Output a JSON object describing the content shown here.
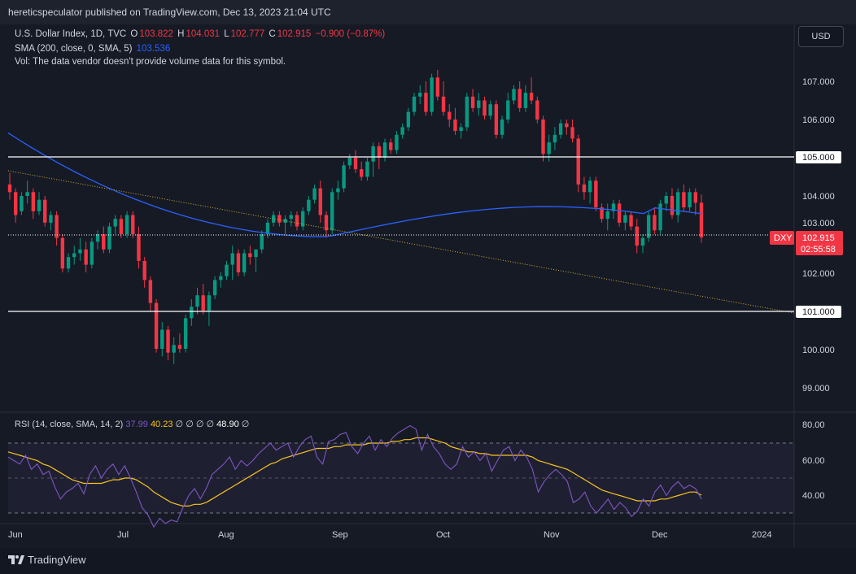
{
  "header": {
    "publisher": "hereticspeculator published on TradingView.com, Dec 13, 2023 21:04 UTC"
  },
  "legend": {
    "symbol": "U.S. Dollar Index, 1D, TVC",
    "o_label": "O",
    "o_value": "103.822",
    "h_label": "H",
    "h_value": "104.031",
    "l_label": "L",
    "l_value": "102.777",
    "c_label": "C",
    "c_value": "102.915",
    "change": "−0.900 (−0.87%)",
    "sma_label": "SMA (200, close, 0, SMA, 5)",
    "sma_value": "103.536",
    "vol_note": "Vol: The data vendor doesn't provide volume data for this symbol."
  },
  "currency_button": "USD",
  "price_axis": {
    "ticks": [
      "107.000",
      "106.000",
      "105.000",
      "104.000",
      "103.000",
      "102.000",
      "101.000",
      "100.000",
      "99.000"
    ],
    "hline_labels": [
      "105.000",
      "101.000"
    ],
    "last_symbol": "DXY",
    "last_price": "102.915",
    "countdown": "02:55:58"
  },
  "rsi": {
    "label": "RSI (14, close, SMA, 14, 2)",
    "rsi_value": "37.99",
    "sma_value": "40.23",
    "empty_values": [
      "∅",
      "∅",
      "∅",
      "∅"
    ],
    "extra_value": "48.90",
    "extra_empty": "∅",
    "ticks": [
      "80.00",
      "60.00",
      "40.00"
    ]
  },
  "time_axis": {
    "labels": [
      "Jun",
      "Jul",
      "Aug",
      "Sep",
      "Oct",
      "Nov",
      "Dec",
      "2024"
    ]
  },
  "branding": {
    "logo_text": "TradingView"
  },
  "colors": {
    "up": "#089981",
    "down": "#f23645",
    "sma": "#2962ff",
    "rsi": "#7e57c2",
    "rsi_sma": "#f7c51e",
    "trend": "#c9b03a"
  },
  "chart_data": {
    "type": "candlestick",
    "title": "U.S. Dollar Index, 1D, TVC",
    "ylim": [
      98.5,
      108.6
    ],
    "horizontal_levels": [
      105.0,
      101.0
    ],
    "trendline": {
      "from": {
        "date": "2023-06-01",
        "price": 104.65
      },
      "to": {
        "date": "2024-01-05",
        "price": 100.95
      }
    },
    "sma_200": {
      "start": 105.65,
      "min": 102.93,
      "end": 103.536
    },
    "last_close": 102.915,
    "candles": [
      {
        "o": 104.3,
        "h": 104.6,
        "l": 103.9,
        "c": 104.1
      },
      {
        "o": 104.1,
        "h": 104.2,
        "l": 103.3,
        "c": 103.5
      },
      {
        "o": 103.6,
        "h": 104.1,
        "l": 103.5,
        "c": 104.0
      },
      {
        "o": 104.0,
        "h": 104.4,
        "l": 103.8,
        "c": 104.1
      },
      {
        "o": 104.1,
        "h": 104.2,
        "l": 103.4,
        "c": 103.6
      },
      {
        "o": 103.6,
        "h": 104.1,
        "l": 103.5,
        "c": 103.9
      },
      {
        "o": 103.9,
        "h": 104.0,
        "l": 103.2,
        "c": 103.3
      },
      {
        "o": 103.3,
        "h": 103.6,
        "l": 103.1,
        "c": 103.5
      },
      {
        "o": 103.5,
        "h": 103.6,
        "l": 102.7,
        "c": 102.9
      },
      {
        "o": 102.9,
        "h": 103.0,
        "l": 102.0,
        "c": 102.1
      },
      {
        "o": 102.1,
        "h": 102.5,
        "l": 102.0,
        "c": 102.4
      },
      {
        "o": 102.4,
        "h": 102.7,
        "l": 102.2,
        "c": 102.5
      },
      {
        "o": 102.5,
        "h": 102.9,
        "l": 102.3,
        "c": 102.6
      },
      {
        "o": 102.6,
        "h": 102.8,
        "l": 102.0,
        "c": 102.2
      },
      {
        "o": 102.2,
        "h": 102.9,
        "l": 102.1,
        "c": 102.8
      },
      {
        "o": 102.8,
        "h": 103.1,
        "l": 102.6,
        "c": 103.0
      },
      {
        "o": 103.0,
        "h": 103.2,
        "l": 102.5,
        "c": 102.6
      },
      {
        "o": 102.6,
        "h": 103.3,
        "l": 102.5,
        "c": 103.2
      },
      {
        "o": 103.2,
        "h": 103.5,
        "l": 103.0,
        "c": 103.4
      },
      {
        "o": 103.4,
        "h": 103.5,
        "l": 102.9,
        "c": 103.0
      },
      {
        "o": 103.0,
        "h": 103.6,
        "l": 102.9,
        "c": 103.5
      },
      {
        "o": 103.5,
        "h": 103.6,
        "l": 102.9,
        "c": 103.0
      },
      {
        "o": 103.0,
        "h": 103.2,
        "l": 102.1,
        "c": 102.3
      },
      {
        "o": 102.3,
        "h": 102.4,
        "l": 101.6,
        "c": 101.8
      },
      {
        "o": 101.8,
        "h": 101.9,
        "l": 101.0,
        "c": 101.2
      },
      {
        "o": 101.2,
        "h": 101.3,
        "l": 99.9,
        "c": 100.0
      },
      {
        "o": 100.0,
        "h": 100.7,
        "l": 99.8,
        "c": 100.5
      },
      {
        "o": 100.5,
        "h": 100.6,
        "l": 99.7,
        "c": 99.9
      },
      {
        "o": 99.9,
        "h": 100.3,
        "l": 99.6,
        "c": 100.1
      },
      {
        "o": 100.1,
        "h": 100.4,
        "l": 99.9,
        "c": 100.0
      },
      {
        "o": 100.0,
        "h": 100.9,
        "l": 99.9,
        "c": 100.8
      },
      {
        "o": 100.8,
        "h": 101.3,
        "l": 100.6,
        "c": 101.1
      },
      {
        "o": 101.1,
        "h": 101.6,
        "l": 100.9,
        "c": 101.4
      },
      {
        "o": 101.4,
        "h": 101.7,
        "l": 100.9,
        "c": 101.0
      },
      {
        "o": 101.0,
        "h": 101.5,
        "l": 100.6,
        "c": 101.4
      },
      {
        "o": 101.4,
        "h": 101.9,
        "l": 101.3,
        "c": 101.8
      },
      {
        "o": 101.8,
        "h": 102.0,
        "l": 101.6,
        "c": 101.9
      },
      {
        "o": 101.9,
        "h": 102.3,
        "l": 101.8,
        "c": 102.2
      },
      {
        "o": 102.2,
        "h": 102.7,
        "l": 101.8,
        "c": 102.5
      },
      {
        "o": 102.5,
        "h": 102.6,
        "l": 101.9,
        "c": 102.0
      },
      {
        "o": 102.0,
        "h": 102.6,
        "l": 101.9,
        "c": 102.5
      },
      {
        "o": 102.5,
        "h": 102.7,
        "l": 102.2,
        "c": 102.4
      },
      {
        "o": 102.4,
        "h": 102.6,
        "l": 102.0,
        "c": 102.6
      },
      {
        "o": 102.6,
        "h": 103.1,
        "l": 102.5,
        "c": 103.0
      },
      {
        "o": 103.0,
        "h": 103.4,
        "l": 102.9,
        "c": 103.3
      },
      {
        "o": 103.3,
        "h": 103.6,
        "l": 103.2,
        "c": 103.5
      },
      {
        "o": 103.5,
        "h": 103.6,
        "l": 103.2,
        "c": 103.3
      },
      {
        "o": 103.3,
        "h": 103.5,
        "l": 103.0,
        "c": 103.4
      },
      {
        "o": 103.4,
        "h": 103.6,
        "l": 103.2,
        "c": 103.5
      },
      {
        "o": 103.5,
        "h": 103.6,
        "l": 103.1,
        "c": 103.2
      },
      {
        "o": 103.2,
        "h": 103.7,
        "l": 103.1,
        "c": 103.6
      },
      {
        "o": 103.6,
        "h": 104.0,
        "l": 103.5,
        "c": 103.9
      },
      {
        "o": 103.9,
        "h": 104.3,
        "l": 103.8,
        "c": 104.2
      },
      {
        "o": 104.2,
        "h": 104.4,
        "l": 103.3,
        "c": 103.5
      },
      {
        "o": 103.5,
        "h": 103.6,
        "l": 102.9,
        "c": 103.1
      },
      {
        "o": 103.1,
        "h": 104.2,
        "l": 103.0,
        "c": 104.1
      },
      {
        "o": 104.1,
        "h": 104.4,
        "l": 103.9,
        "c": 104.2
      },
      {
        "o": 104.2,
        "h": 104.9,
        "l": 104.1,
        "c": 104.8
      },
      {
        "o": 104.8,
        "h": 105.1,
        "l": 104.7,
        "c": 105.0
      },
      {
        "o": 105.0,
        "h": 105.2,
        "l": 104.6,
        "c": 104.7
      },
      {
        "o": 104.7,
        "h": 104.9,
        "l": 104.4,
        "c": 104.5
      },
      {
        "o": 104.5,
        "h": 105.0,
        "l": 104.4,
        "c": 104.9
      },
      {
        "o": 104.9,
        "h": 105.4,
        "l": 104.5,
        "c": 105.3
      },
      {
        "o": 105.3,
        "h": 105.4,
        "l": 104.7,
        "c": 105.0
      },
      {
        "o": 105.0,
        "h": 105.5,
        "l": 104.9,
        "c": 105.4
      },
      {
        "o": 105.4,
        "h": 105.5,
        "l": 105.1,
        "c": 105.2
      },
      {
        "o": 105.2,
        "h": 105.7,
        "l": 105.1,
        "c": 105.6
      },
      {
        "o": 105.6,
        "h": 105.9,
        "l": 105.5,
        "c": 105.8
      },
      {
        "o": 105.8,
        "h": 106.3,
        "l": 105.7,
        "c": 106.2
      },
      {
        "o": 106.2,
        "h": 106.7,
        "l": 106.1,
        "c": 106.6
      },
      {
        "o": 106.6,
        "h": 106.9,
        "l": 106.4,
        "c": 106.7
      },
      {
        "o": 106.7,
        "h": 107.0,
        "l": 106.1,
        "c": 106.2
      },
      {
        "o": 106.2,
        "h": 107.2,
        "l": 106.1,
        "c": 107.1
      },
      {
        "o": 107.1,
        "h": 107.3,
        "l": 106.5,
        "c": 106.6
      },
      {
        "o": 106.6,
        "h": 107.0,
        "l": 106.1,
        "c": 106.2
      },
      {
        "o": 106.2,
        "h": 106.4,
        "l": 105.8,
        "c": 106.0
      },
      {
        "o": 106.0,
        "h": 106.3,
        "l": 105.6,
        "c": 105.7
      },
      {
        "o": 105.7,
        "h": 105.9,
        "l": 105.5,
        "c": 105.8
      },
      {
        "o": 105.8,
        "h": 106.7,
        "l": 105.7,
        "c": 106.6
      },
      {
        "o": 106.6,
        "h": 106.8,
        "l": 106.2,
        "c": 106.3
      },
      {
        "o": 106.3,
        "h": 106.7,
        "l": 106.1,
        "c": 106.5
      },
      {
        "o": 106.5,
        "h": 106.6,
        "l": 106.0,
        "c": 106.1
      },
      {
        "o": 106.1,
        "h": 106.5,
        "l": 106.0,
        "c": 106.4
      },
      {
        "o": 106.4,
        "h": 106.5,
        "l": 105.5,
        "c": 105.6
      },
      {
        "o": 105.6,
        "h": 106.1,
        "l": 105.5,
        "c": 106.0
      },
      {
        "o": 106.0,
        "h": 106.7,
        "l": 105.9,
        "c": 106.5
      },
      {
        "o": 106.5,
        "h": 106.9,
        "l": 106.4,
        "c": 106.8
      },
      {
        "o": 106.8,
        "h": 107.0,
        "l": 106.2,
        "c": 106.3
      },
      {
        "o": 106.3,
        "h": 106.9,
        "l": 106.2,
        "c": 106.7
      },
      {
        "o": 106.7,
        "h": 107.1,
        "l": 106.4,
        "c": 106.5
      },
      {
        "o": 106.5,
        "h": 106.6,
        "l": 105.9,
        "c": 106.0
      },
      {
        "o": 106.0,
        "h": 106.1,
        "l": 104.9,
        "c": 105.1
      },
      {
        "o": 105.1,
        "h": 105.6,
        "l": 104.9,
        "c": 105.4
      },
      {
        "o": 105.4,
        "h": 105.8,
        "l": 105.2,
        "c": 105.6
      },
      {
        "o": 105.6,
        "h": 106.0,
        "l": 105.5,
        "c": 105.9
      },
      {
        "o": 105.9,
        "h": 106.0,
        "l": 105.6,
        "c": 105.8
      },
      {
        "o": 105.8,
        "h": 106.0,
        "l": 105.4,
        "c": 105.5
      },
      {
        "o": 105.5,
        "h": 105.6,
        "l": 104.1,
        "c": 104.3
      },
      {
        "o": 104.3,
        "h": 104.5,
        "l": 103.9,
        "c": 104.1
      },
      {
        "o": 104.1,
        "h": 104.5,
        "l": 103.8,
        "c": 104.4
      },
      {
        "o": 104.4,
        "h": 104.5,
        "l": 103.6,
        "c": 103.7
      },
      {
        "o": 103.7,
        "h": 103.8,
        "l": 103.3,
        "c": 103.4
      },
      {
        "o": 103.4,
        "h": 103.8,
        "l": 103.1,
        "c": 103.6
      },
      {
        "o": 103.6,
        "h": 103.9,
        "l": 103.4,
        "c": 103.8
      },
      {
        "o": 103.8,
        "h": 103.9,
        "l": 103.2,
        "c": 103.3
      },
      {
        "o": 103.3,
        "h": 103.6,
        "l": 103.1,
        "c": 103.5
      },
      {
        "o": 103.5,
        "h": 103.6,
        "l": 103.1,
        "c": 103.2
      },
      {
        "o": 103.2,
        "h": 103.4,
        "l": 102.5,
        "c": 102.7
      },
      {
        "o": 102.7,
        "h": 103.0,
        "l": 102.5,
        "c": 102.9
      },
      {
        "o": 102.9,
        "h": 103.6,
        "l": 102.8,
        "c": 103.5
      },
      {
        "o": 103.5,
        "h": 103.7,
        "l": 103.0,
        "c": 103.1
      },
      {
        "o": 103.1,
        "h": 103.9,
        "l": 103.0,
        "c": 103.8
      },
      {
        "o": 103.8,
        "h": 104.1,
        "l": 103.6,
        "c": 104.0
      },
      {
        "o": 104.0,
        "h": 104.2,
        "l": 103.4,
        "c": 103.5
      },
      {
        "o": 103.5,
        "h": 104.2,
        "l": 103.3,
        "c": 104.1
      },
      {
        "o": 104.1,
        "h": 104.3,
        "l": 103.6,
        "c": 103.7
      },
      {
        "o": 103.7,
        "h": 104.2,
        "l": 103.6,
        "c": 104.1
      },
      {
        "o": 104.1,
        "h": 104.2,
        "l": 103.5,
        "c": 103.822
      },
      {
        "o": 103.822,
        "h": 104.031,
        "l": 102.777,
        "c": 102.915
      }
    ],
    "rsi_panel": {
      "ylim": [
        20,
        85
      ],
      "bands": [
        70,
        50,
        30
      ],
      "rsi": [
        62,
        60,
        58,
        63,
        55,
        58,
        52,
        54,
        45,
        38,
        42,
        44,
        47,
        41,
        52,
        57,
        50,
        55,
        58,
        52,
        57,
        50,
        42,
        33,
        29,
        22,
        27,
        24,
        26,
        25,
        33,
        40,
        44,
        38,
        44,
        52,
        55,
        58,
        62,
        55,
        60,
        57,
        60,
        64,
        67,
        70,
        66,
        68,
        70,
        62,
        68,
        72,
        74,
        62,
        58,
        71,
        72,
        75,
        76,
        68,
        64,
        70,
        74,
        66,
        72,
        68,
        73,
        76,
        78,
        80,
        78,
        66,
        75,
        68,
        64,
        58,
        55,
        58,
        68,
        62,
        65,
        60,
        64,
        54,
        60,
        66,
        68,
        60,
        66,
        62,
        55,
        42,
        48,
        52,
        55,
        52,
        48,
        36,
        38,
        42,
        34,
        30,
        34,
        38,
        32,
        36,
        33,
        28,
        31,
        38,
        34,
        42,
        46,
        40,
        45,
        48,
        44,
        46,
        44,
        38
      ],
      "rsi_sma": [
        65,
        64,
        63,
        62,
        61,
        60,
        58,
        57,
        55,
        53,
        51,
        49,
        48,
        47,
        47,
        47,
        47,
        48,
        49,
        49,
        50,
        50,
        49,
        47,
        45,
        42,
        40,
        38,
        36,
        35,
        34,
        34,
        35,
        35,
        36,
        38,
        40,
        42,
        44,
        46,
        48,
        50,
        52,
        54,
        56,
        58,
        59,
        61,
        62,
        63,
        64,
        65,
        66,
        67,
        67,
        67,
        68,
        68,
        69,
        69,
        69,
        69,
        70,
        70,
        70,
        70,
        71,
        71,
        72,
        72,
        73,
        73,
        73,
        72,
        71,
        70,
        68,
        67,
        66,
        65,
        65,
        64,
        64,
        63,
        63,
        63,
        63,
        63,
        63,
        63,
        62,
        60,
        59,
        58,
        57,
        56,
        55,
        53,
        51,
        49,
        47,
        45,
        43,
        42,
        41,
        40,
        39,
        38,
        37,
        37,
        37,
        37,
        38,
        38,
        39,
        40,
        41,
        42,
        42,
        40.23
      ]
    }
  }
}
